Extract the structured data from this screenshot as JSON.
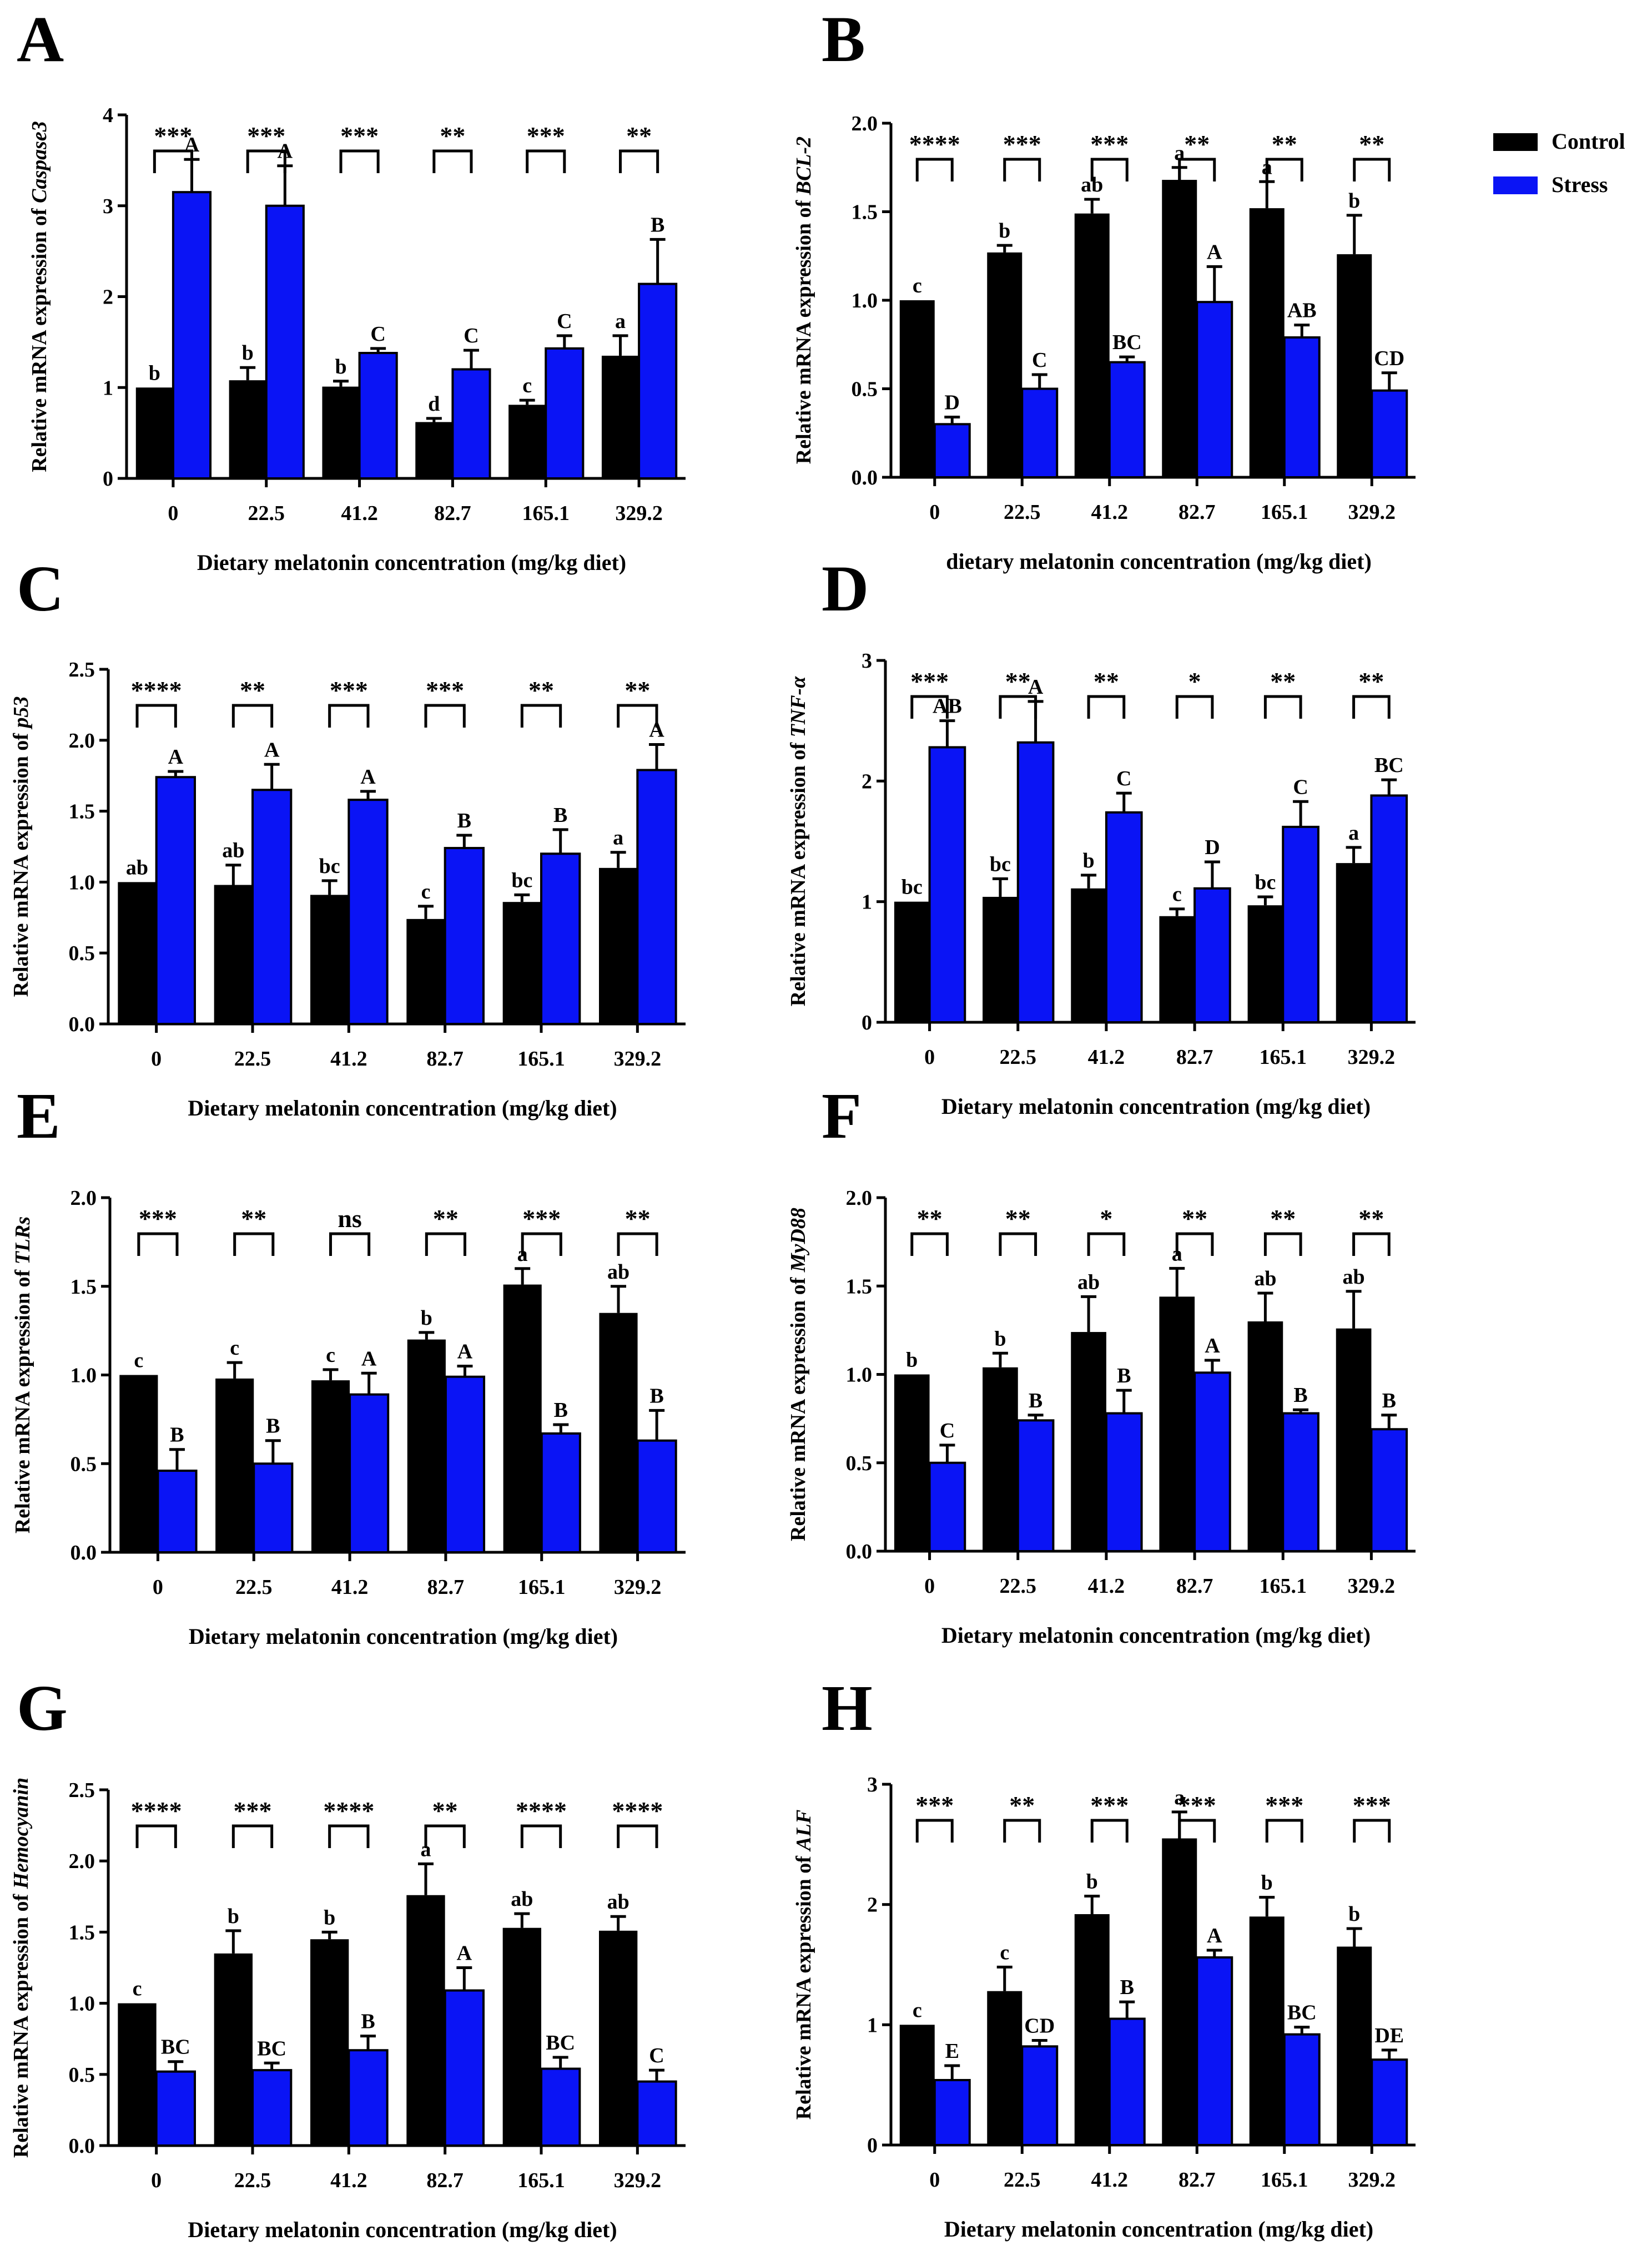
{
  "figure": {
    "legend": {
      "control": "Control",
      "stress": "Stress"
    },
    "colors": {
      "control": "#000000",
      "stress": "#0a14f5",
      "axis": "#000000"
    }
  },
  "chart_data": [
    {
      "panel": "A",
      "type": "bar",
      "categories": [
        "0",
        "22.5",
        "41.2",
        "82.7",
        "165.1",
        "329.2"
      ],
      "series": [
        {
          "name": "Control",
          "values": [
            1.0,
            1.08,
            1.01,
            0.62,
            0.81,
            1.35
          ],
          "errors": [
            0.0,
            0.14,
            0.06,
            0.04,
            0.05,
            0.22
          ],
          "letters": [
            "b",
            "b",
            "b",
            "d",
            "c",
            "a"
          ]
        },
        {
          "name": "Stress",
          "values": [
            3.15,
            3.0,
            1.38,
            1.2,
            1.43,
            2.14
          ],
          "errors": [
            0.36,
            0.44,
            0.05,
            0.21,
            0.14,
            0.49
          ],
          "letters": [
            "A",
            "A",
            "C",
            "C",
            "C",
            "B"
          ]
        }
      ],
      "significance": [
        "***",
        "***",
        "***",
        "**",
        "***",
        "**"
      ],
      "ylim": [
        0,
        4
      ],
      "yticks": [
        "0",
        "1",
        "2",
        "3",
        "4"
      ],
      "ylabel_prefix": "Relative mRNA expression of ",
      "gene": "Caspase3",
      "xlabel": "Dietary melatonin concentration (mg/kg diet)"
    },
    {
      "panel": "B",
      "type": "bar",
      "categories": [
        "0",
        "22.5",
        "41.2",
        "82.7",
        "165.1",
        "329.2"
      ],
      "series": [
        {
          "name": "Control",
          "values": [
            1.0,
            1.27,
            1.49,
            1.68,
            1.52,
            1.26
          ],
          "errors": [
            0.0,
            0.04,
            0.08,
            0.07,
            0.15,
            0.22
          ],
          "letters": [
            "c",
            "b",
            "ab",
            "a",
            "a",
            "b"
          ]
        },
        {
          "name": "Stress",
          "values": [
            0.3,
            0.5,
            0.65,
            0.99,
            0.79,
            0.49
          ],
          "errors": [
            0.04,
            0.08,
            0.03,
            0.2,
            0.07,
            0.1
          ],
          "letters": [
            "D",
            "C",
            "BC",
            "A",
            "AB",
            "CD"
          ]
        }
      ],
      "significance": [
        "****",
        "***",
        "***",
        "**",
        "**",
        "**"
      ],
      "ylim": [
        0,
        2
      ],
      "yticks": [
        "0.0",
        "0.5",
        "1.0",
        "1.5",
        "2.0"
      ],
      "ylabel_prefix": "Relative mRNA expression of ",
      "gene": "BCL-2",
      "xlabel": "dietary melatonin concentration (mg/kg diet)"
    },
    {
      "panel": "C",
      "type": "bar",
      "categories": [
        "0",
        "22.5",
        "41.2",
        "82.7",
        "165.1",
        "329.2"
      ],
      "series": [
        {
          "name": "Control",
          "values": [
            1.0,
            0.98,
            0.91,
            0.74,
            0.86,
            1.1
          ],
          "errors": [
            0.0,
            0.14,
            0.1,
            0.09,
            0.05,
            0.11
          ],
          "letters": [
            "ab",
            "ab",
            "bc",
            "c",
            "bc",
            "a"
          ]
        },
        {
          "name": "Stress",
          "values": [
            1.74,
            1.65,
            1.58,
            1.24,
            1.2,
            1.79
          ],
          "errors": [
            0.04,
            0.18,
            0.06,
            0.09,
            0.17,
            0.18
          ],
          "letters": [
            "A",
            "A",
            "A",
            "B",
            "B",
            "A"
          ]
        }
      ],
      "significance": [
        "****",
        "**",
        "***",
        "***",
        "**",
        "**"
      ],
      "ylim": [
        0,
        2.5
      ],
      "yticks": [
        "0.0",
        "0.5",
        "1.0",
        "1.5",
        "2.0",
        "2.5"
      ],
      "ylabel_prefix": "Relative mRNA expression of ",
      "gene": "p53",
      "xlabel": "Dietary melatonin concentration (mg/kg diet)"
    },
    {
      "panel": "D",
      "type": "bar",
      "categories": [
        "0",
        "22.5",
        "41.2",
        "82.7",
        "165.1",
        "329.2"
      ],
      "series": [
        {
          "name": "Control",
          "values": [
            1.0,
            1.04,
            1.11,
            0.88,
            0.97,
            1.32
          ],
          "errors": [
            0.0,
            0.15,
            0.11,
            0.06,
            0.07,
            0.13
          ],
          "letters": [
            "bc",
            "bc",
            "b",
            "c",
            "bc",
            "a"
          ]
        },
        {
          "name": "Stress",
          "values": [
            2.28,
            2.32,
            1.74,
            1.11,
            1.62,
            1.88
          ],
          "errors": [
            0.22,
            0.34,
            0.16,
            0.22,
            0.21,
            0.13
          ],
          "letters": [
            "AB",
            "A",
            "C",
            "D",
            "C",
            "BC"
          ]
        }
      ],
      "significance": [
        "***",
        "**",
        "**",
        "*",
        "**",
        "**"
      ],
      "ylim": [
        0,
        3
      ],
      "yticks": [
        "0",
        "1",
        "2",
        "3"
      ],
      "ylabel_prefix": "Relative mRNA expression of ",
      "gene": "TNF-α",
      "xlabel": "Dietary melatonin concentration (mg/kg diet)"
    },
    {
      "panel": "E",
      "type": "bar",
      "categories": [
        "0",
        "22.5",
        "41.2",
        "82.7",
        "165.1",
        "329.2"
      ],
      "series": [
        {
          "name": "Control",
          "values": [
            1.0,
            0.98,
            0.97,
            1.2,
            1.51,
            1.35
          ],
          "errors": [
            0.0,
            0.09,
            0.06,
            0.04,
            0.09,
            0.15
          ],
          "letters": [
            "c",
            "c",
            "c",
            "b",
            "a",
            "ab"
          ]
        },
        {
          "name": "Stress",
          "values": [
            0.46,
            0.5,
            0.89,
            0.99,
            0.67,
            0.63
          ],
          "errors": [
            0.12,
            0.13,
            0.12,
            0.06,
            0.05,
            0.17
          ],
          "letters": [
            "B",
            "B",
            "A",
            "A",
            "B",
            "B"
          ]
        }
      ],
      "significance": [
        "***",
        "**",
        "ns",
        "**",
        "***",
        "**"
      ],
      "ylim": [
        0,
        2
      ],
      "yticks": [
        "0.0",
        "0.5",
        "1.0",
        "1.5",
        "2.0"
      ],
      "ylabel_prefix": "Relative mRNA expression of ",
      "gene": "TLRs",
      "xlabel": "Dietary melatonin concentration (mg/kg diet)"
    },
    {
      "panel": "F",
      "type": "bar",
      "categories": [
        "0",
        "22.5",
        "41.2",
        "82.7",
        "165.1",
        "329.2"
      ],
      "series": [
        {
          "name": "Control",
          "values": [
            1.0,
            1.04,
            1.24,
            1.44,
            1.3,
            1.26
          ],
          "errors": [
            0.0,
            0.08,
            0.2,
            0.16,
            0.16,
            0.21
          ],
          "letters": [
            "b",
            "b",
            "ab",
            "a",
            "ab",
            "ab"
          ]
        },
        {
          "name": "Stress",
          "values": [
            0.5,
            0.74,
            0.78,
            1.01,
            0.78,
            0.69
          ],
          "errors": [
            0.1,
            0.03,
            0.13,
            0.07,
            0.02,
            0.08
          ],
          "letters": [
            "C",
            "B",
            "B",
            "A",
            "B",
            "B"
          ]
        }
      ],
      "significance": [
        "**",
        "**",
        "*",
        "**",
        "**",
        "**"
      ],
      "ylim": [
        0,
        2
      ],
      "yticks": [
        "0.0",
        "0.5",
        "1.0",
        "1.5",
        "2.0"
      ],
      "ylabel_prefix": "Relative mRNA expression of ",
      "gene": "MyD88",
      "xlabel": "Dietary melatonin concentration (mg/kg diet)"
    },
    {
      "panel": "G",
      "type": "bar",
      "categories": [
        "0",
        "22.5",
        "41.2",
        "82.7",
        "165.1",
        "329.2"
      ],
      "series": [
        {
          "name": "Control",
          "values": [
            1.0,
            1.35,
            1.45,
            1.76,
            1.53,
            1.51
          ],
          "errors": [
            0.0,
            0.16,
            0.05,
            0.22,
            0.1,
            0.1
          ],
          "letters": [
            "c",
            "b",
            "b",
            "a",
            "ab",
            "ab"
          ]
        },
        {
          "name": "Stress",
          "values": [
            0.52,
            0.53,
            0.67,
            1.09,
            0.54,
            0.45
          ],
          "errors": [
            0.07,
            0.05,
            0.1,
            0.16,
            0.08,
            0.08
          ],
          "letters": [
            "BC",
            "BC",
            "B",
            "A",
            "BC",
            "C"
          ]
        }
      ],
      "significance": [
        "****",
        "***",
        "****",
        "**",
        "****",
        "****"
      ],
      "ylim": [
        0,
        2.5
      ],
      "yticks": [
        "0.0",
        "0.5",
        "1.0",
        "1.5",
        "2.0",
        "2.5"
      ],
      "ylabel_prefix": "Relative mRNA expression of ",
      "gene": "Hemocyanin",
      "xlabel": "Dietary melatonin concentration (mg/kg diet)"
    },
    {
      "panel": "H",
      "type": "bar",
      "categories": [
        "0",
        "22.5",
        "41.2",
        "82.7",
        "165.1",
        "329.2"
      ],
      "series": [
        {
          "name": "Control",
          "values": [
            1.0,
            1.28,
            1.92,
            2.55,
            1.9,
            1.65
          ],
          "errors": [
            0.0,
            0.2,
            0.15,
            0.22,
            0.16,
            0.15
          ],
          "letters": [
            "c",
            "c",
            "b",
            "a",
            "b",
            "b"
          ]
        },
        {
          "name": "Stress",
          "values": [
            0.54,
            0.82,
            1.05,
            1.56,
            0.92,
            0.71
          ],
          "errors": [
            0.12,
            0.05,
            0.14,
            0.06,
            0.06,
            0.08
          ],
          "letters": [
            "E",
            "CD",
            "B",
            "A",
            "BC",
            "DE"
          ]
        }
      ],
      "significance": [
        "***",
        "**",
        "***",
        "***",
        "***",
        "***"
      ],
      "ylim": [
        0,
        3
      ],
      "yticks": [
        "0",
        "1",
        "2",
        "3"
      ],
      "ylabel_prefix": "Relative mRNA expression of ",
      "gene": "ALF",
      "xlabel": "Dietary melatonin concentration (mg/kg diet)"
    }
  ]
}
